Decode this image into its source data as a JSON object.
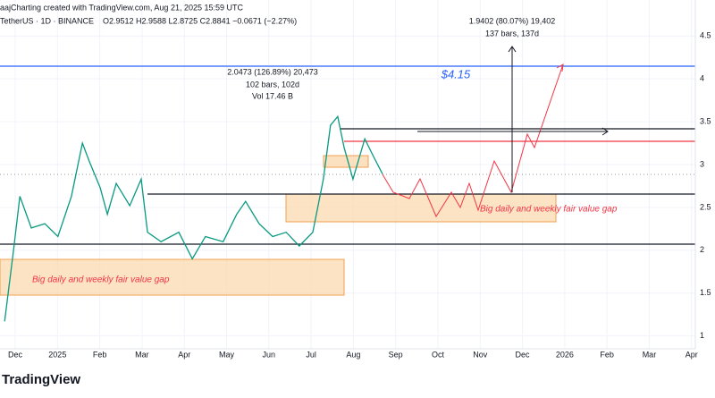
{
  "header": {
    "attribution": "aajCharting created with TradingView.com, Aug 21, 2025 15:59 UTC",
    "symbol": "TetherUS · 1D · BINANCE",
    "ohlc": "O2.9512 H2.9588 L2.8725 C2.8841 −0.0671 (−2.27%)"
  },
  "annotations": {
    "measure_left": [
      "2.0473 (126.89%) 20,473",
      "102 bars, 102d",
      "Vol 17.46 B"
    ],
    "measure_right": [
      "1.9402 (80.07%) 19,402",
      "137 bars, 137d"
    ],
    "target": "$4.15",
    "gap_left": "Big daily and weekly fair value gap",
    "gap_right": "Big daily and weekly fair value gap"
  },
  "logo": "TradingView",
  "chart_data": {
    "type": "line",
    "x": [
      -0.25,
      -0.04,
      0.11,
      0.38,
      0.7,
      1.01,
      1.33,
      1.59,
      1.75,
      2.01,
      2.18,
      2.39,
      2.71,
      2.98,
      3.13,
      3.45,
      3.87,
      4.19,
      4.5,
      4.92,
      5.24,
      5.45,
      5.77,
      6.09,
      6.41,
      6.72,
      7.04,
      7.29,
      7.46,
      7.63,
      7.78,
      7.99,
      8.27,
      8.48,
      8.69
    ],
    "series": [
      {
        "color": "#089981",
        "values": [
          1.17,
          2.0,
          2.63,
          2.26,
          2.31,
          2.16,
          2.63,
          3.25,
          3.04,
          2.73,
          2.42,
          2.78,
          2.52,
          2.83,
          2.21,
          2.1,
          2.21,
          1.9,
          2.16,
          2.1,
          2.42,
          2.57,
          2.31,
          2.16,
          2.21,
          2.05,
          2.21,
          2.83,
          3.46,
          3.56,
          3.2,
          2.83,
          3.3,
          3.09,
          2.89
        ]
      }
    ],
    "xlim": [
      -0.36,
      16.09
    ],
    "xticks": [
      {
        "value": 0,
        "label": "Dec"
      },
      {
        "value": 1,
        "label": "2025"
      },
      {
        "value": 2,
        "label": "Feb"
      },
      {
        "value": 3,
        "label": "Mar"
      },
      {
        "value": 4,
        "label": "Apr"
      },
      {
        "value": 5,
        "label": "May"
      },
      {
        "value": 6,
        "label": "Jun"
      },
      {
        "value": 7,
        "label": "Jul"
      },
      {
        "value": 8,
        "label": "Aug"
      },
      {
        "value": 9,
        "label": "Sep"
      },
      {
        "value": 10,
        "label": "Oct"
      },
      {
        "value": 11,
        "label": "Nov"
      },
      {
        "value": 12,
        "label": "Dec"
      },
      {
        "value": 13,
        "label": "2026"
      },
      {
        "value": 14,
        "label": "Feb"
      },
      {
        "value": 15,
        "label": "Mar"
      },
      {
        "value": 16,
        "label": "Apr"
      }
    ],
    "ylim": [
      0.85,
      4.92
    ],
    "yticks": [
      1.0,
      1.5,
      2.0,
      2.5,
      3.0,
      3.5,
      4.0,
      4.5
    ],
    "grid": true
  }
}
